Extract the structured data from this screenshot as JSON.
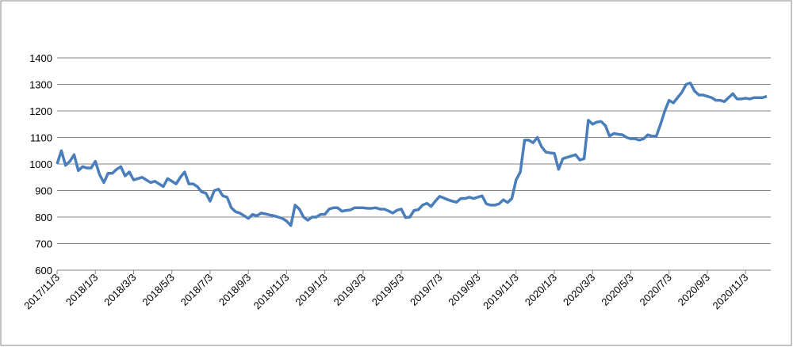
{
  "chart_data": {
    "type": "line",
    "categories": [
      "2017/11/3",
      null,
      null,
      null,
      null,
      null,
      null,
      null,
      null,
      "2018/1/3",
      null,
      null,
      null,
      null,
      null,
      null,
      null,
      null,
      "2018/3/3",
      null,
      null,
      null,
      null,
      null,
      null,
      null,
      null,
      "2018/5/3",
      null,
      null,
      null,
      null,
      null,
      null,
      null,
      null,
      "2018/7/3",
      null,
      null,
      null,
      null,
      null,
      null,
      null,
      null,
      "2018/9/3",
      null,
      null,
      null,
      null,
      null,
      null,
      null,
      null,
      "2018/11/3",
      null,
      null,
      null,
      null,
      null,
      null,
      null,
      null,
      "2019/1/3",
      null,
      null,
      null,
      null,
      null,
      null,
      null,
      null,
      "2019/3/3",
      null,
      null,
      null,
      null,
      null,
      null,
      null,
      null,
      "2019/5/3",
      null,
      null,
      null,
      null,
      null,
      null,
      null,
      null,
      "2019/7/3",
      null,
      null,
      null,
      null,
      null,
      null,
      null,
      null,
      "2019/9/3",
      null,
      null,
      null,
      null,
      null,
      null,
      null,
      null,
      "2019/11/3",
      null,
      null,
      null,
      null,
      null,
      null,
      null,
      null,
      "2020/1/3",
      null,
      null,
      null,
      null,
      null,
      null,
      null,
      null,
      "2020/3/3",
      null,
      null,
      null,
      null,
      null,
      null,
      null,
      null,
      "2020/5/3",
      null,
      null,
      null,
      null,
      null,
      null,
      null,
      null,
      "2020/7/3",
      null,
      null,
      null,
      null,
      null,
      null,
      null,
      null,
      "2020/9/3",
      null,
      null,
      null,
      null,
      null,
      null,
      null,
      null,
      "2020/11/3",
      null,
      null,
      null,
      null,
      null
    ],
    "values": [
      1000,
      1050,
      995,
      1010,
      1035,
      975,
      990,
      985,
      985,
      1010,
      960,
      930,
      965,
      965,
      980,
      990,
      955,
      970,
      940,
      945,
      950,
      940,
      930,
      935,
      925,
      915,
      945,
      935,
      925,
      950,
      970,
      925,
      925,
      915,
      895,
      890,
      860,
      900,
      905,
      880,
      875,
      835,
      820,
      815,
      805,
      795,
      810,
      805,
      815,
      812,
      808,
      805,
      800,
      795,
      785,
      768,
      845,
      830,
      800,
      788,
      800,
      800,
      810,
      810,
      830,
      835,
      835,
      822,
      825,
      827,
      835,
      835,
      835,
      833,
      833,
      835,
      830,
      830,
      823,
      815,
      826,
      830,
      798,
      800,
      825,
      828,
      845,
      852,
      840,
      860,
      878,
      872,
      865,
      860,
      856,
      870,
      870,
      875,
      870,
      875,
      880,
      850,
      845,
      845,
      850,
      865,
      855,
      870,
      940,
      970,
      1090,
      1090,
      1080,
      1100,
      1065,
      1045,
      1042,
      1040,
      980,
      1020,
      1025,
      1030,
      1035,
      1015,
      1020,
      1165,
      1150,
      1158,
      1160,
      1145,
      1105,
      1115,
      1112,
      1110,
      1100,
      1095,
      1095,
      1090,
      1095,
      1110,
      1105,
      1105,
      1150,
      1200,
      1240,
      1230,
      1250,
      1270,
      1300,
      1305,
      1275,
      1260,
      1260,
      1255,
      1250,
      1240,
      1240,
      1235,
      1250,
      1265,
      1245,
      1245,
      1248,
      1245,
      1250,
      1250,
      1250,
      1255
    ],
    "color": "#4a7ebb",
    "ylim": [
      600,
      1400
    ],
    "yticks": [
      600,
      700,
      800,
      900,
      1000,
      1100,
      1200,
      1300,
      1400
    ],
    "grid": true
  }
}
